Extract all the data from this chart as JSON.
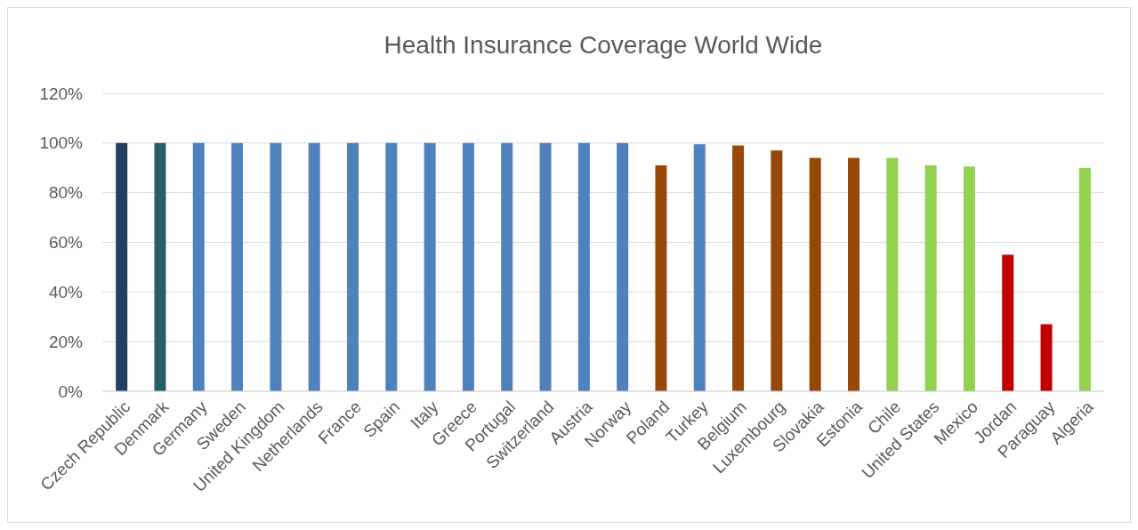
{
  "chart_data": {
    "type": "bar",
    "title": "Health Insurance Coverage World Wide",
    "categories": [
      "Czech Republic",
      "Denmark",
      "Germany",
      "Sweden",
      "United Kingdom",
      "Netherlands",
      "France",
      "Spain",
      "Italy",
      "Greece",
      "Portugal",
      "Switzerland",
      "Austria",
      "Norway",
      "Poland",
      "Turkey",
      "Belgium",
      "Luxembourg",
      "Slovakia",
      "Estonia",
      "Chile",
      "United States",
      "Mexico",
      "Jordan",
      "Paraguay",
      "Algeria"
    ],
    "values": [
      100,
      100,
      100,
      100,
      100,
      100,
      100,
      100,
      100,
      100,
      100,
      100,
      100,
      100,
      91,
      99.5,
      99,
      97,
      94,
      94,
      94,
      91,
      90.5,
      55,
      27,
      90
    ],
    "colors": [
      "#243f60",
      "#255e69",
      "#4f81bd",
      "#4f81bd",
      "#4f81bd",
      "#4f81bd",
      "#4f81bd",
      "#4f81bd",
      "#4f81bd",
      "#4f81bd",
      "#4f81bd",
      "#4f81bd",
      "#4f81bd",
      "#4f81bd",
      "#974706",
      "#4f81bd",
      "#974706",
      "#974706",
      "#974706",
      "#974706",
      "#92d050",
      "#92d050",
      "#92d050",
      "#c00000",
      "#c00000",
      "#92d050"
    ],
    "ylim": [
      0,
      120
    ],
    "yticks": [
      {
        "value": 0,
        "label": "0%"
      },
      {
        "value": 20,
        "label": "20%"
      },
      {
        "value": 40,
        "label": "40%"
      },
      {
        "value": 60,
        "label": "60%"
      },
      {
        "value": 80,
        "label": "80%"
      },
      {
        "value": 100,
        "label": "100%"
      },
      {
        "value": 120,
        "label": "120%"
      }
    ],
    "grid": "y"
  }
}
